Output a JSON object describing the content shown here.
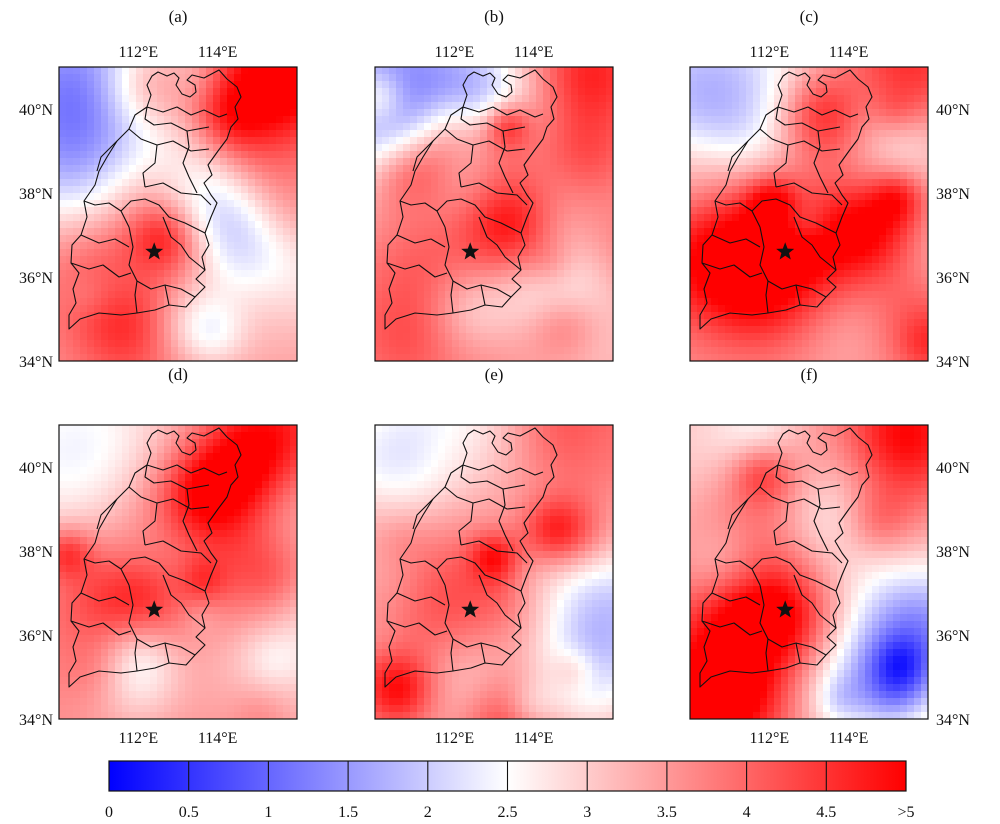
{
  "chart_data": {
    "type": "heatmap",
    "colorbar": {
      "ticks": [
        "0",
        "0.5",
        "1",
        "1.5",
        "2",
        "2.5",
        "3",
        "3.5",
        "4",
        "4.5",
        ">5"
      ],
      "range": [
        0,
        5
      ],
      "colors": {
        "low": "#0000ff",
        "mid": "#ffffff",
        "high": "#ff0000"
      }
    },
    "panels": [
      {
        "label": "(a)",
        "xticks": [
          "112°E",
          "114°E"
        ],
        "xticks_position": "top",
        "yticks": [
          "40°N",
          "38°N",
          "36°N",
          "34°N"
        ],
        "yticks_position": "left"
      },
      {
        "label": "(b)",
        "xticks": [
          "112°E",
          "114°E"
        ],
        "xticks_position": "top",
        "yticks": [],
        "yticks_position": "none"
      },
      {
        "label": "(c)",
        "xticks": [
          "112°E",
          "114°E"
        ],
        "xticks_position": "top",
        "yticks": [
          "40°N",
          "38°N",
          "36°N",
          "34°N"
        ],
        "yticks_position": "right"
      },
      {
        "label": "(d)",
        "xticks": [
          "112°E",
          "114°E"
        ],
        "xticks_position": "bottom",
        "yticks": [
          "40°N",
          "38°N",
          "36°N",
          "34°N"
        ],
        "yticks_position": "left"
      },
      {
        "label": "(e)",
        "xticks": [
          "112°E",
          "114°E"
        ],
        "xticks_position": "bottom",
        "yticks": [],
        "yticks_position": "none"
      },
      {
        "label": "(f)",
        "xticks": [
          "112°E",
          "114°E"
        ],
        "xticks_position": "bottom",
        "yticks": [
          "40°N",
          "38°N",
          "36°N",
          "34°N"
        ],
        "yticks_position": "right"
      }
    ],
    "axes": {
      "lon_range": [
        110,
        116
      ],
      "lat_range": [
        34,
        41
      ],
      "lon_ticks": [
        112,
        114
      ],
      "lat_ticks": [
        40,
        38,
        36,
        34
      ]
    },
    "marker": {
      "type": "star",
      "lon": 112.4,
      "lat": 36.6
    }
  }
}
